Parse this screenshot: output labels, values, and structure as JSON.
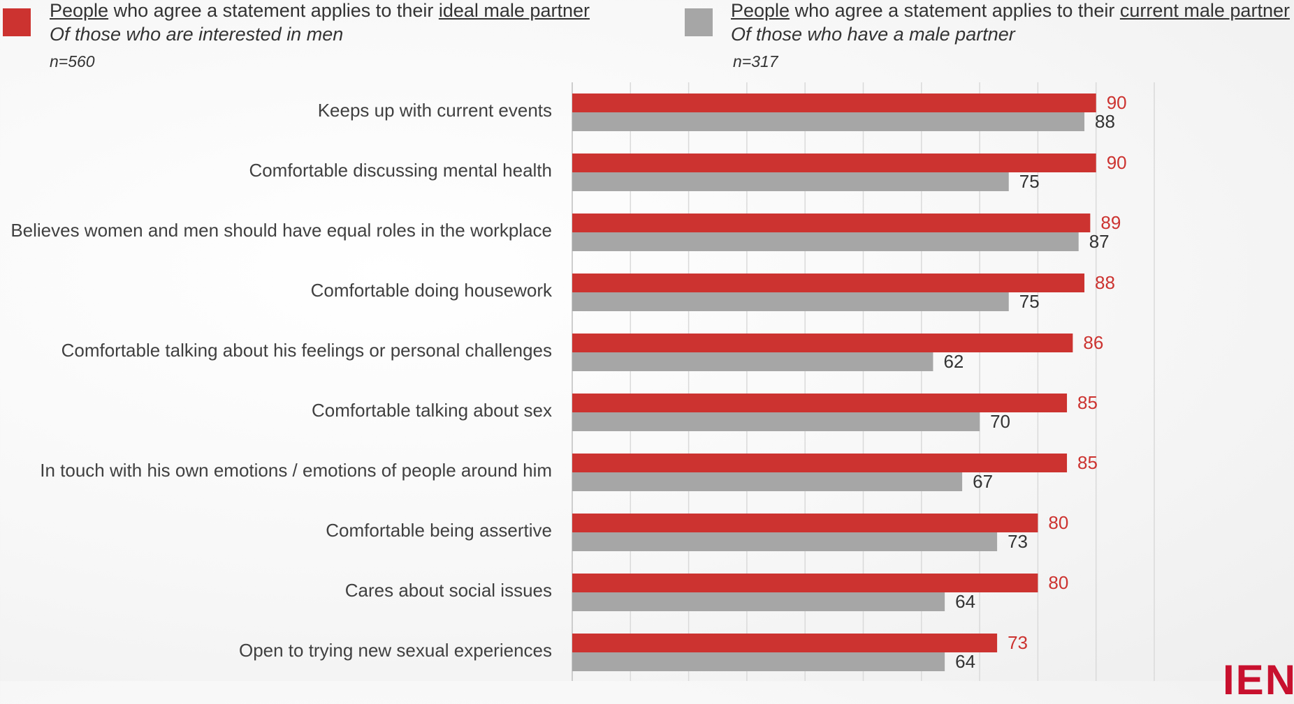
{
  "legend": {
    "ideal": {
      "part1": "People",
      "part2": " who agree a statement applies to their ",
      "part3": "ideal male partner",
      "sub": "Of those who are interested in men",
      "n": "n=560",
      "color": "#cc3330"
    },
    "current": {
      "part1": "People",
      "part2": " who agree a statement applies to their ",
      "part3": "current male partner",
      "sub": "Of those who have a male partner",
      "n": "n=317",
      "color": "#a6a6a6"
    }
  },
  "brand_text": "IEN",
  "chart_data": {
    "type": "bar",
    "orientation": "horizontal",
    "categories": [
      "Keeps up with current events",
      "Comfortable discussing mental health",
      "Believes women and men should have equal roles in the workplace",
      "Comfortable doing housework",
      "Comfortable talking about his feelings or personal challenges",
      "Comfortable talking about sex",
      "In touch with his own emotions / emotions of people around him",
      "Comfortable being assertive",
      "Cares about social issues",
      "Open to trying new sexual experiences"
    ],
    "series": [
      {
        "name": "People who agree a statement applies to their ideal male partner",
        "color": "#cc3330",
        "label_color": "#cc3330",
        "values": [
          90,
          90,
          89,
          88,
          86,
          85,
          85,
          80,
          80,
          73
        ]
      },
      {
        "name": "People who agree a statement applies to their current male partner",
        "color": "#a6a6a6",
        "label_color": "#333333",
        "values": [
          88,
          75,
          87,
          75,
          62,
          70,
          67,
          73,
          64,
          64
        ]
      }
    ],
    "xlim": [
      0,
      100
    ],
    "grid": true,
    "data_labels": true
  }
}
